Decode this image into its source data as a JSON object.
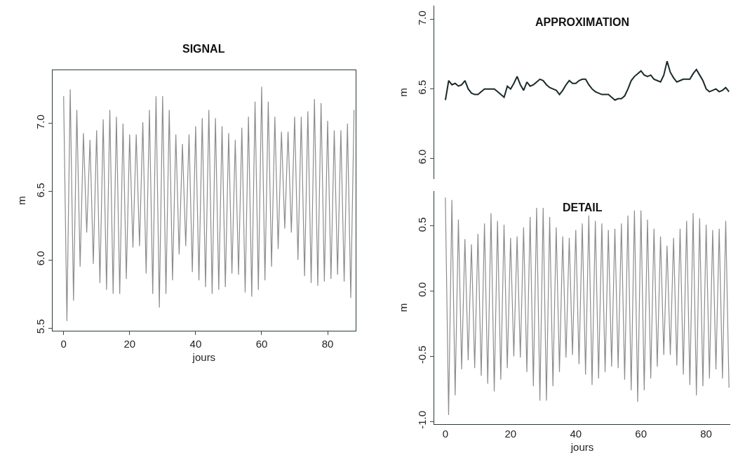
{
  "chart_data": [
    {
      "type": "line",
      "title": "SIGNAL",
      "xlabel": "jours",
      "ylabel": "m",
      "xlim": [
        -3.4,
        88.5
      ],
      "ylim": [
        5.48,
        7.39
      ],
      "xticks": [
        0,
        20,
        40,
        60,
        80
      ],
      "yticks": [
        {
          "value": 5.5,
          "label": "5.5"
        },
        {
          "value": 6.0,
          "label": "6.0"
        },
        {
          "value": 6.5,
          "label": "6.5"
        },
        {
          "value": 7.0,
          "label": "7.0"
        }
      ],
      "line_style": "solid",
      "x": [
        0,
        1,
        2,
        3,
        4,
        5,
        6,
        7,
        8,
        9,
        10,
        11,
        12,
        13,
        14,
        15,
        16,
        17,
        18,
        19,
        20,
        21,
        22,
        23,
        24,
        25,
        26,
        27,
        28,
        29,
        30,
        31,
        32,
        33,
        34,
        35,
        36,
        37,
        38,
        39,
        40,
        41,
        42,
        43,
        44,
        45,
        46,
        47,
        48,
        49,
        50,
        51,
        52,
        53,
        54,
        55,
        56,
        57,
        58,
        59,
        60,
        61,
        62,
        63,
        64,
        65,
        66,
        67,
        68,
        69,
        70,
        71,
        72,
        73,
        74,
        75,
        76,
        77,
        78,
        79,
        80,
        81,
        82,
        83,
        84,
        85,
        86,
        87,
        88
      ],
      "series": [
        {
          "color": "#8c8c8c",
          "values": [
            7.2,
            5.55,
            7.25,
            5.7,
            7.1,
            5.95,
            6.93,
            6.2,
            6.88,
            5.97,
            6.95,
            5.83,
            7.03,
            5.78,
            7.1,
            5.75,
            7.05,
            5.75,
            7.0,
            5.86,
            6.92,
            6.09,
            6.92,
            6.1,
            7.01,
            5.9,
            7.1,
            5.75,
            7.2,
            5.65,
            7.2,
            5.75,
            7.1,
            5.85,
            6.92,
            6.04,
            6.85,
            6.1,
            6.92,
            5.91,
            6.98,
            5.85,
            7.04,
            5.8,
            7.1,
            5.75,
            7.04,
            5.78,
            6.98,
            5.8,
            6.93,
            5.9,
            6.88,
            5.89,
            6.97,
            5.76,
            7.05,
            5.73,
            7.16,
            5.78,
            7.27,
            5.85,
            7.16,
            5.95,
            7.05,
            6.08,
            6.94,
            6.23,
            6.94,
            6.2,
            7.05,
            6.0,
            7.05,
            5.88,
            7.09,
            5.83,
            7.18,
            5.81,
            7.15,
            5.84,
            7.02,
            5.86,
            6.95,
            5.89,
            6.95,
            5.84,
            7.0,
            5.72,
            7.1
          ]
        }
      ]
    },
    {
      "type": "line",
      "title": "APPROXIMATION",
      "ylabel": "m",
      "categories": [
        null,
        null,
        null,
        null,
        null,
        null,
        null,
        null,
        null,
        null,
        null,
        null,
        null,
        null,
        null,
        null,
        null,
        null,
        null,
        null,
        null,
        null,
        null,
        null,
        null,
        null,
        null,
        null,
        null,
        null,
        null,
        null,
        null,
        null,
        null,
        null,
        null,
        null,
        null,
        null,
        null,
        null,
        null,
        null,
        null,
        null,
        null,
        null,
        null,
        null,
        null,
        null,
        null,
        null,
        null,
        null,
        null,
        null,
        null,
        null,
        null,
        null,
        null,
        null,
        null,
        null,
        null,
        null,
        null,
        null,
        null,
        null,
        null,
        null,
        null,
        null,
        null,
        null,
        null,
        null,
        null,
        null,
        null,
        null,
        null,
        null,
        null,
        null
      ],
      "ylim": [
        5.85,
        7.1
      ],
      "yticks": [
        {
          "value": 6.0,
          "label": "6.0"
        },
        {
          "value": 6.5,
          "label": "6.5"
        },
        {
          "value": 7.0,
          "label": "7.0"
        }
      ],
      "tick_labels": "y",
      "line_style": "solid",
      "series": [
        {
          "color": "#1a2a2a",
          "values": [
            6.42,
            6.56,
            6.53,
            6.54,
            6.52,
            6.53,
            6.56,
            6.5,
            6.47,
            6.46,
            6.46,
            6.48,
            6.5,
            6.5,
            6.5,
            6.5,
            6.48,
            6.46,
            6.44,
            6.52,
            6.5,
            6.54,
            6.59,
            6.53,
            6.49,
            6.55,
            6.52,
            6.53,
            6.55,
            6.57,
            6.56,
            6.53,
            6.51,
            6.5,
            6.49,
            6.46,
            6.49,
            6.53,
            6.56,
            6.54,
            6.54,
            6.56,
            6.57,
            6.57,
            6.53,
            6.5,
            6.48,
            6.47,
            6.46,
            6.46,
            6.46,
            6.44,
            6.42,
            6.43,
            6.43,
            6.45,
            6.5,
            6.56,
            6.59,
            6.61,
            6.63,
            6.6,
            6.59,
            6.6,
            6.57,
            6.56,
            6.55,
            6.6,
            6.7,
            6.62,
            6.58,
            6.55,
            6.56,
            6.57,
            6.57,
            6.57,
            6.61,
            6.64,
            6.6,
            6.56,
            6.5,
            6.48,
            6.49,
            6.5,
            6.48,
            6.49,
            6.51,
            6.48
          ]
        }
      ]
    },
    {
      "type": "line",
      "title": "DETAIL",
      "xlabel": "jours",
      "ylabel": "m",
      "xlim": [
        -3.5,
        87.5
      ],
      "ylim": [
        -1.02,
        0.77
      ],
      "xticks": [
        0,
        20,
        40,
        60,
        80
      ],
      "yticks": [
        {
          "value": -1.0,
          "label": "-1.0"
        },
        {
          "value": -0.5,
          "label": "-0.5"
        },
        {
          "value": 0.0,
          "label": "0.0"
        },
        {
          "value": 0.5,
          "label": "0.5"
        }
      ],
      "line_style": "solid",
      "x": [
        0,
        1,
        2,
        3,
        4,
        5,
        6,
        7,
        8,
        9,
        10,
        11,
        12,
        13,
        14,
        15,
        16,
        17,
        18,
        19,
        20,
        21,
        22,
        23,
        24,
        25,
        26,
        27,
        28,
        29,
        30,
        31,
        32,
        33,
        34,
        35,
        36,
        37,
        38,
        39,
        40,
        41,
        42,
        43,
        44,
        45,
        46,
        47,
        48,
        49,
        50,
        51,
        52,
        53,
        54,
        55,
        56,
        57,
        58,
        59,
        60,
        61,
        62,
        63,
        64,
        65,
        66,
        67,
        68,
        69,
        70,
        71,
        72,
        73,
        74,
        75,
        76,
        77,
        78,
        79,
        80,
        81,
        82,
        83,
        84,
        85,
        86,
        87
      ],
      "series": [
        {
          "color": "#8c8c8c",
          "values": [
            0.72,
            -0.95,
            0.7,
            -0.8,
            0.55,
            -0.6,
            0.4,
            -0.53,
            0.36,
            -0.59,
            0.44,
            -0.65,
            0.52,
            -0.71,
            0.6,
            -0.77,
            0.54,
            -0.68,
            0.51,
            -0.59,
            0.41,
            -0.5,
            0.42,
            -0.51,
            0.49,
            -0.62,
            0.57,
            -0.73,
            0.64,
            -0.84,
            0.64,
            -0.84,
            0.57,
            -0.73,
            0.49,
            -0.62,
            0.42,
            -0.51,
            0.41,
            -0.49,
            0.47,
            -0.56,
            0.52,
            -0.64,
            0.58,
            -0.72,
            0.54,
            -0.67,
            0.52,
            -0.62,
            0.47,
            -0.58,
            0.48,
            -0.59,
            0.52,
            -0.68,
            0.58,
            -0.76,
            0.62,
            -0.85,
            0.62,
            -0.76,
            0.55,
            -0.67,
            0.48,
            -0.58,
            0.42,
            -0.49,
            0.35,
            -0.49,
            0.41,
            -0.57,
            0.48,
            -0.64,
            0.54,
            -0.72,
            0.6,
            -0.8,
            0.56,
            -0.73,
            0.51,
            -0.67,
            0.47,
            -0.6,
            0.48,
            -0.67,
            0.54,
            -0.74
          ]
        }
      ]
    }
  ]
}
